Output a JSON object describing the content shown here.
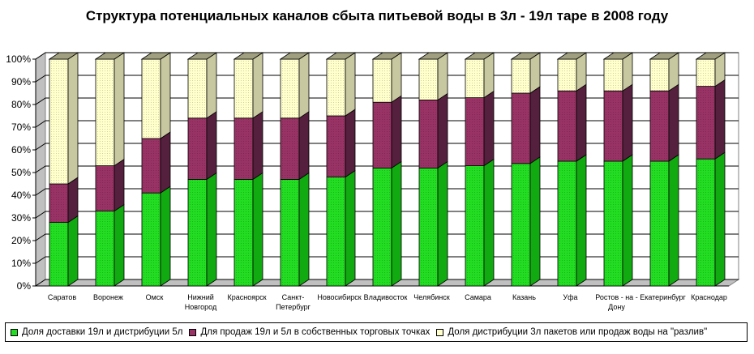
{
  "chart_data": {
    "type": "bar",
    "stacked": true,
    "percent": true,
    "three_d": true,
    "title": "Структура потенциальных каналов сбыта питьевой воды в 3л - 19л таре в 2008 году",
    "categories": [
      [
        "Саратов"
      ],
      [
        "Воронеж"
      ],
      [
        "Омск"
      ],
      [
        "Нижний",
        "Новгород"
      ],
      [
        "Красноярск"
      ],
      [
        "Санкт-",
        "Петербург"
      ],
      [
        "Новосибирск"
      ],
      [
        "Владивосток"
      ],
      [
        "Челябинск"
      ],
      [
        "Самара"
      ],
      [
        "Казань"
      ],
      [
        "Уфа"
      ],
      [
        "Ростов - на -",
        "Дону"
      ],
      [
        "Екатеринбург"
      ],
      [
        "Краснодар"
      ]
    ],
    "series": [
      {
        "name": "Доля доставки 19л и дистрибуции 5л",
        "values": [
          28,
          33,
          41,
          47,
          47,
          47,
          48,
          52,
          52,
          53,
          54,
          55,
          55,
          55,
          56
        ],
        "color": "#22dd22",
        "side": "#11aa11",
        "top": "#55ee55"
      },
      {
        "name": "Для продаж 19л и 5л в собственных торговых точках",
        "values": [
          17,
          20,
          24,
          27,
          27,
          27,
          27,
          29,
          30,
          30,
          31,
          31,
          31,
          31,
          32
        ],
        "color": "#993366",
        "side": "#55203d",
        "top": "#b3527f"
      },
      {
        "name": "Доля дистрибуции 3л пакетов или продаж воды на \"разлив\"",
        "values": [
          55,
          47,
          35,
          26,
          26,
          26,
          25,
          19,
          18,
          17,
          15,
          14,
          14,
          14,
          12
        ],
        "color": "#ffffcc",
        "side": "#c8c8a0",
        "top": "#a0a080"
      }
    ],
    "y_ticks": [
      "0%",
      "10%",
      "20%",
      "30%",
      "40%",
      "50%",
      "60%",
      "70%",
      "80%",
      "90%",
      "100%"
    ],
    "ylim": [
      0,
      100
    ],
    "legend_position": "bottom"
  }
}
